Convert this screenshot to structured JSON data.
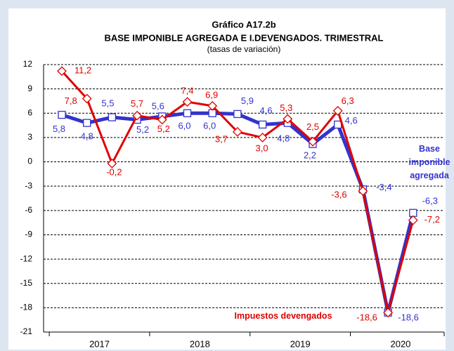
{
  "chart_data": {
    "type": "line",
    "title": "Gráfico A17.2b",
    "subtitle": "BASE IMPONIBLE AGREGADA E I.DEVENGADOS. TRIMESTRAL",
    "note": "(tasas de variación)",
    "categories": [
      null,
      null,
      null,
      null,
      null,
      null,
      null,
      null,
      null,
      null,
      null,
      null,
      null,
      null,
      null
    ],
    "years": [
      "2017",
      "2018",
      "2019",
      "2020"
    ],
    "series": [
      {
        "name": "Base imponible agregada",
        "color": "#3333cc",
        "values": [
          5.8,
          4.8,
          5.5,
          5.2,
          5.6,
          6.0,
          6.0,
          5.9,
          4.6,
          4.8,
          2.2,
          4.6,
          -3.4,
          -18.6,
          -6.3
        ],
        "value_labels": [
          "5,8",
          "4,8",
          "5,5",
          "5,2",
          "5,6",
          "6,0",
          "6,0",
          "5,9",
          "4,6",
          "4,8",
          "2,2",
          "4,6",
          "-3,4",
          "-18,6",
          "-6,3"
        ]
      },
      {
        "name": "Impuestos devengados",
        "color": "#e00000",
        "values": [
          11.2,
          7.8,
          -0.2,
          5.7,
          5.2,
          7.4,
          6.9,
          3.7,
          3.0,
          5.3,
          2.5,
          6.3,
          -3.6,
          -18.6,
          -7.2
        ],
        "value_labels": [
          "11,2",
          "7,8",
          "-0,2",
          "5,7",
          "5,2",
          "7,4",
          "6,9",
          "3,7",
          "3,0",
          "5,3",
          "2,5",
          "6,3",
          "-3,6",
          "-18,6",
          "-7,2"
        ]
      }
    ],
    "ylim": [
      -21,
      12
    ],
    "yticks": [
      -21,
      -18,
      -15,
      -12,
      -9,
      -6,
      -3,
      0,
      3,
      6,
      9,
      12
    ],
    "grid": true
  }
}
